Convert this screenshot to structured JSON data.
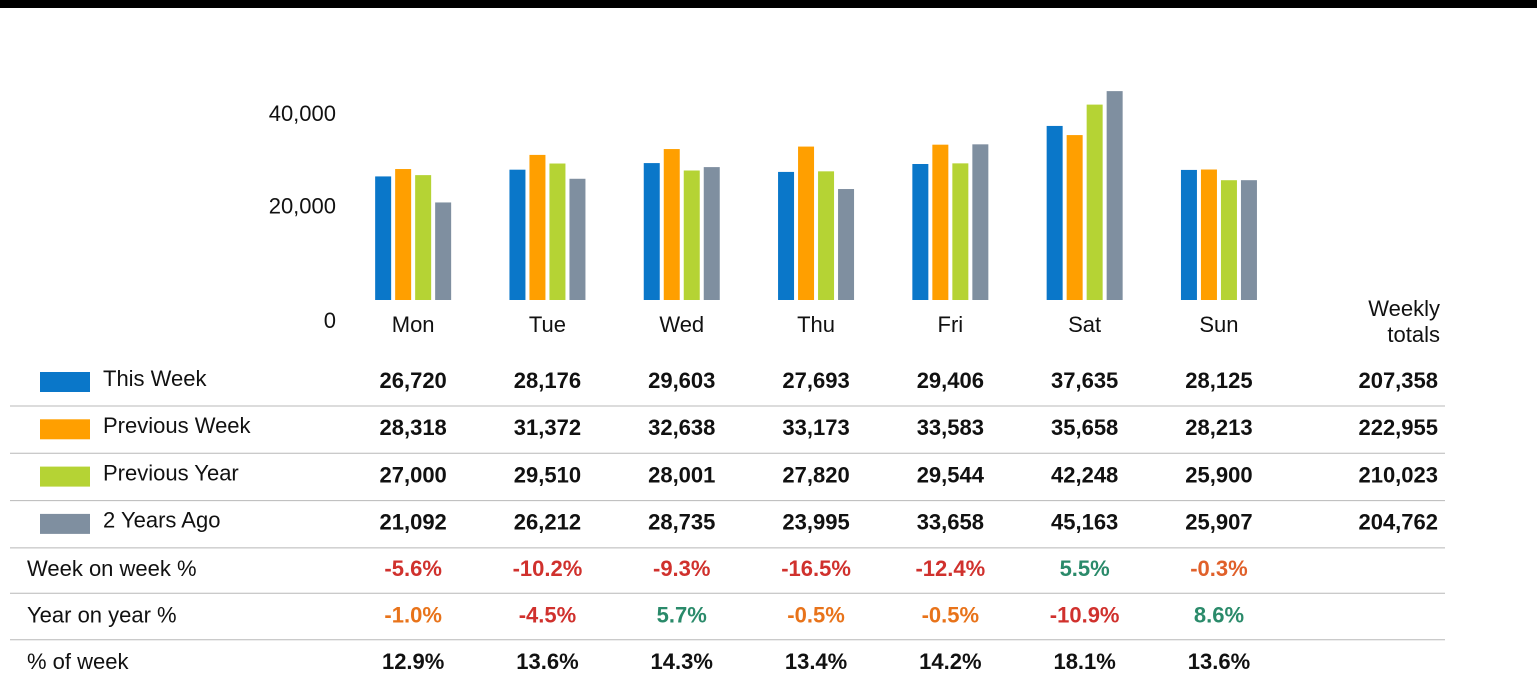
{
  "chart_data": {
    "type": "bar",
    "categories": [
      "Mon",
      "Tue",
      "Wed",
      "Thu",
      "Fri",
      "Sat",
      "Sun"
    ],
    "series": [
      {
        "name": "This Week",
        "color": "#0a77c9",
        "values": [
          26720,
          28176,
          29603,
          27693,
          29406,
          37635,
          28125
        ],
        "total": "207,358"
      },
      {
        "name": "Previous Week",
        "color": "#ff9f00",
        "values": [
          28318,
          31372,
          32638,
          33173,
          33583,
          35658,
          28213
        ],
        "total": "222,955"
      },
      {
        "name": "Previous Year",
        "color": "#b5d334",
        "values": [
          27000,
          29510,
          28001,
          27820,
          29544,
          42248,
          25900
        ],
        "total": "210,023"
      },
      {
        "name": "2 Years Ago",
        "color": "#7f8fa0",
        "values": [
          21092,
          26212,
          28735,
          23995,
          33658,
          45163,
          25907
        ],
        "total": "204,762"
      }
    ],
    "ylim": [
      0,
      48000
    ],
    "yticks": [
      0,
      {
        "value": 20000,
        "label": "20,000"
      },
      {
        "value": 40000,
        "label": "40,000"
      }
    ],
    "totals_label": "Weekly totals",
    "table_rows": [
      {
        "label": "Week on week %",
        "cells": [
          "-5.6%",
          "-10.2%",
          "-9.3%",
          "-16.5%",
          "-12.4%",
          "5.5%",
          "-0.3%"
        ],
        "colors": [
          "#d0312d",
          "#d0312d",
          "#d0312d",
          "#d0312d",
          "#d0312d",
          "#2a8a6a",
          "#e0602a"
        ]
      },
      {
        "label": "Year on year %",
        "cells": [
          "-1.0%",
          "-4.5%",
          "5.7%",
          "-0.5%",
          "-0.5%",
          "-10.9%",
          "8.6%"
        ],
        "colors": [
          "#e8731a",
          "#d0312d",
          "#2a8a6a",
          "#e8731a",
          "#e8731a",
          "#d0312d",
          "#2a8a6a"
        ]
      },
      {
        "label": "% of week",
        "cells": [
          "12.9%",
          "13.6%",
          "14.3%",
          "13.4%",
          "14.2%",
          "18.1%",
          "13.6%"
        ],
        "colors": [
          "#111111",
          "#111111",
          "#111111",
          "#111111",
          "#111111",
          "#111111",
          "#111111"
        ]
      }
    ]
  }
}
